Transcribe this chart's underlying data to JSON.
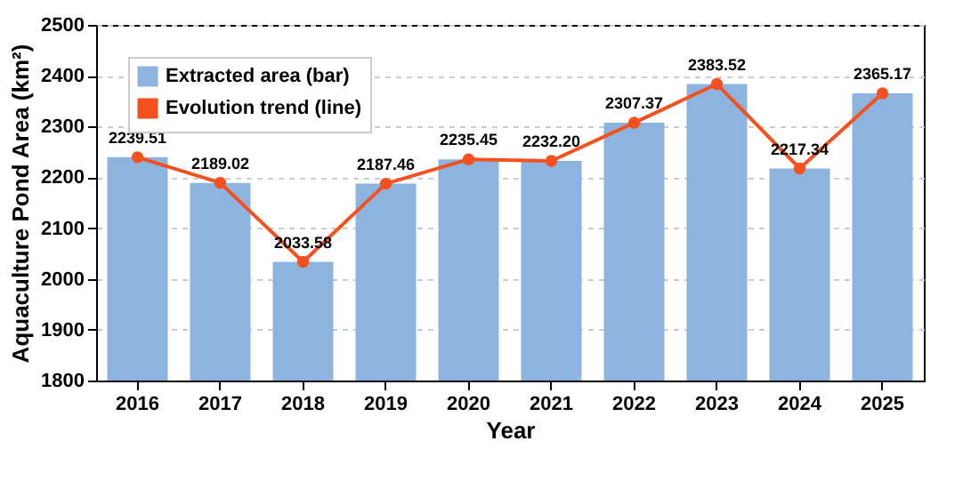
{
  "chart_data": {
    "type": "bar",
    "xlabel": "Year",
    "ylabel": "Aquaculture Pond Area (km²)",
    "categories": [
      "2016",
      "2017",
      "2018",
      "2019",
      "2020",
      "2021",
      "2022",
      "2023",
      "2024",
      "2025"
    ],
    "series": [
      {
        "name": "Extracted area (bar)",
        "color": "#8db4de",
        "values": [
          2239.51,
          2189.02,
          2033.58,
          2187.46,
          2235.45,
          2232.2,
          2307.37,
          2383.52,
          2217.34,
          2365.17
        ]
      },
      {
        "name": "Evolution trend (line)",
        "type": "line",
        "color": "#f4511e",
        "values": [
          2239.51,
          2189.02,
          2033.58,
          2187.46,
          2235.45,
          2232.2,
          2307.37,
          2383.52,
          2217.34,
          2365.17
        ],
        "value_labels": [
          "2239.51",
          "2189.02",
          "2033.58",
          "2187.46",
          "2235.45",
          "2232.20",
          "2307.37",
          "2383.52",
          "2217.34",
          "2365.17"
        ]
      }
    ],
    "ylim": [
      1800,
      2500
    ],
    "yticks": [
      1800,
      1900,
      2000,
      2100,
      2200,
      2300,
      2400,
      2500
    ],
    "grid": "y",
    "legend": "top left",
    "marker": "circle",
    "line_style": "solid"
  }
}
